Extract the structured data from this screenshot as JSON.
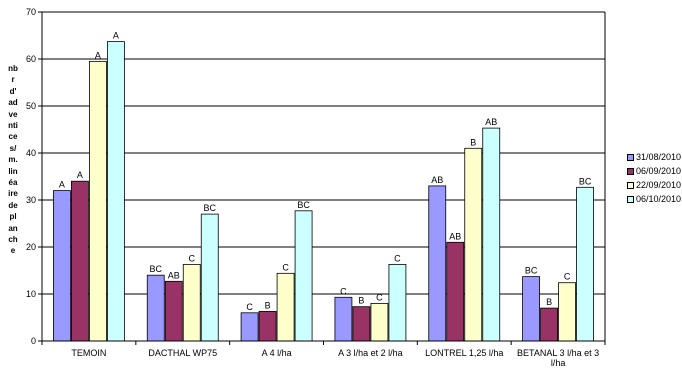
{
  "chart_data": {
    "type": "bar",
    "ylim": [
      0,
      70
    ],
    "yticks": [
      0,
      10,
      20,
      30,
      40,
      50,
      60,
      70
    ],
    "grid": true,
    "legend_position": "right",
    "ylabel_lines": [
      "nb",
      "r",
      "d'",
      "ad",
      "ve",
      "nti",
      "ce",
      "s/",
      "m.",
      "lin",
      "éa",
      "ire",
      "de",
      "pl",
      "an",
      "ch",
      "e"
    ],
    "categories": [
      {
        "lines": [
          "TEMOIN"
        ]
      },
      {
        "lines": [
          "DACTHAL WP75"
        ]
      },
      {
        "lines": [
          "A    4 l/ha"
        ]
      },
      {
        "lines": [
          "A   3 l/ha et 2 l/ha"
        ]
      },
      {
        "lines": [
          "LONTREL   1,25 l/ha"
        ]
      },
      {
        "lines": [
          "BETANAL 3 l/ha et 3",
          "l/ha"
        ]
      }
    ],
    "series": [
      {
        "name": "31/08/2010",
        "color": "#9999ff",
        "values": [
          32,
          14,
          6,
          9.3,
          33,
          13.7
        ],
        "labels": [
          "A",
          "BC",
          "C",
          "C",
          "AB",
          "BC"
        ]
      },
      {
        "name": "06/09/2010",
        "color": "#993366",
        "values": [
          34,
          12.7,
          6.3,
          7.3,
          21,
          7
        ],
        "labels": [
          "A",
          "AB",
          "B",
          "B",
          "AB",
          "B"
        ]
      },
      {
        "name": "22/09/2010",
        "color": "#ffffcc",
        "values": [
          59.5,
          16.3,
          14.4,
          8,
          41,
          12.4
        ],
        "labels": [
          "A",
          "C",
          "C",
          "C",
          "B",
          "C"
        ]
      },
      {
        "name": "06/10/2010",
        "color": "#ccffff",
        "values": [
          63.7,
          27,
          27.7,
          16.3,
          45.3,
          32.7
        ],
        "labels": [
          "A",
          "BC",
          "BC",
          "C",
          "AB",
          "BC"
        ]
      }
    ]
  }
}
